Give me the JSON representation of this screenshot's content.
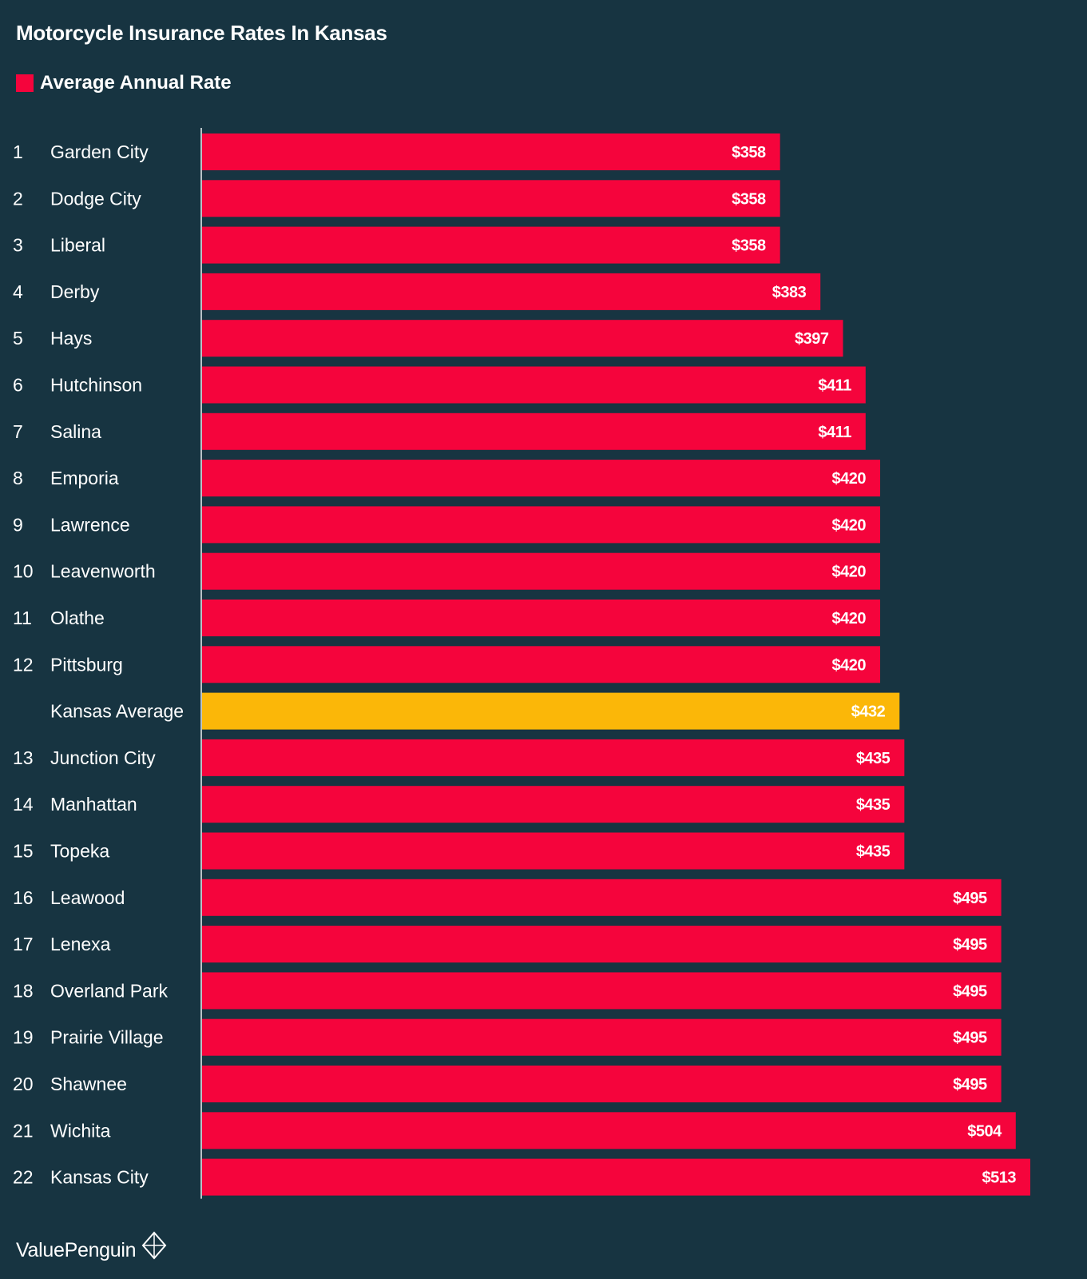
{
  "chart_data": {
    "type": "bar",
    "orientation": "horizontal",
    "title": "Motorcycle Insurance Rates In Kansas",
    "legend": [
      {
        "label": "Average Annual Rate",
        "color": "#f5043c"
      }
    ],
    "series": [
      {
        "name": "Average Annual Rate"
      }
    ],
    "xlim": [
      0,
      513
    ],
    "grid": false,
    "rows": [
      {
        "rank": "1",
        "city": "Garden City",
        "value": 358,
        "label": "$358",
        "color": "#f5043c"
      },
      {
        "rank": "2",
        "city": "Dodge City",
        "value": 358,
        "label": "$358",
        "color": "#f5043c"
      },
      {
        "rank": "3",
        "city": "Liberal",
        "value": 358,
        "label": "$358",
        "color": "#f5043c"
      },
      {
        "rank": "4",
        "city": "Derby",
        "value": 383,
        "label": "$383",
        "color": "#f5043c"
      },
      {
        "rank": "5",
        "city": "Hays",
        "value": 397,
        "label": "$397",
        "color": "#f5043c"
      },
      {
        "rank": "6",
        "city": "Hutchinson",
        "value": 411,
        "label": "$411",
        "color": "#f5043c"
      },
      {
        "rank": "7",
        "city": "Salina",
        "value": 411,
        "label": "$411",
        "color": "#f5043c"
      },
      {
        "rank": "8",
        "city": "Emporia",
        "value": 420,
        "label": "$420",
        "color": "#f5043c"
      },
      {
        "rank": "9",
        "city": "Lawrence",
        "value": 420,
        "label": "$420",
        "color": "#f5043c"
      },
      {
        "rank": "10",
        "city": "Leavenworth",
        "value": 420,
        "label": "$420",
        "color": "#f5043c"
      },
      {
        "rank": "11",
        "city": "Olathe",
        "value": 420,
        "label": "$420",
        "color": "#f5043c"
      },
      {
        "rank": "12",
        "city": "Pittsburg",
        "value": 420,
        "label": "$420",
        "color": "#f5043c"
      },
      {
        "rank": "",
        "city": "Kansas Average",
        "value": 432,
        "label": "$432",
        "color": "#fbb708"
      },
      {
        "rank": "13",
        "city": "Junction City",
        "value": 435,
        "label": "$435",
        "color": "#f5043c"
      },
      {
        "rank": "14",
        "city": "Manhattan",
        "value": 435,
        "label": "$435",
        "color": "#f5043c"
      },
      {
        "rank": "15",
        "city": "Topeka",
        "value": 435,
        "label": "$435",
        "color": "#f5043c"
      },
      {
        "rank": "16",
        "city": "Leawood",
        "value": 495,
        "label": "$495",
        "color": "#f5043c"
      },
      {
        "rank": "17",
        "city": "Lenexa",
        "value": 495,
        "label": "$495",
        "color": "#f5043c"
      },
      {
        "rank": "18",
        "city": "Overland Park",
        "value": 495,
        "label": "$495",
        "color": "#f5043c"
      },
      {
        "rank": "19",
        "city": "Prairie Village",
        "value": 495,
        "label": "$495",
        "color": "#f5043c"
      },
      {
        "rank": "20",
        "city": "Shawnee",
        "value": 495,
        "label": "$495",
        "color": "#f5043c"
      },
      {
        "rank": "21",
        "city": "Wichita",
        "value": 504,
        "label": "$504",
        "color": "#f5043c"
      },
      {
        "rank": "22",
        "city": "Kansas City",
        "value": 513,
        "label": "$513",
        "color": "#f5043c"
      }
    ]
  },
  "colors": {
    "background": "#173441",
    "bar": "#f5043c",
    "average_bar": "#fbb708",
    "axis": "#b9c2c7"
  },
  "footer": {
    "brand": "ValuePenguin",
    "icon": "valuepenguin-logo-icon"
  }
}
